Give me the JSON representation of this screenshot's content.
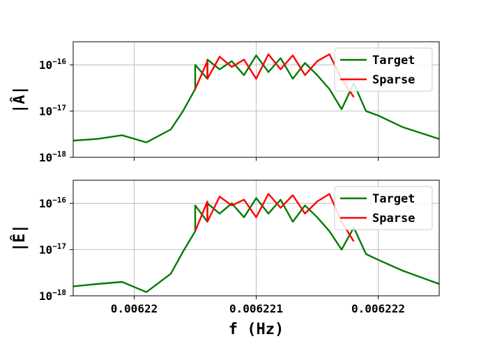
{
  "chart_data": [
    {
      "type": "line",
      "ylabel": "|Â|",
      "yscale": "log",
      "ylim_exponent": [
        -18,
        -15.5
      ],
      "ytick_exponents": [
        -16,
        -17,
        -18
      ],
      "ytick_base": "10",
      "xlim": [
        0.0062195,
        0.0062225
      ],
      "xticks": [
        0.00622,
        0.006221,
        0.006222
      ],
      "xtick_labels": [
        "",
        "",
        ""
      ],
      "grid": true,
      "legend": "top-right",
      "series": [
        {
          "name": "Target",
          "color": "#007a00",
          "x": [
            0.0062195,
            0.0062197,
            0.0062199,
            0.0062201,
            0.0062203,
            0.0062204,
            0.0062205,
            0.0062205,
            0.0062206,
            0.0062206,
            0.0062207,
            0.0062208,
            0.0062209,
            0.006221,
            0.0062211,
            0.0062212,
            0.0062213,
            0.0062214,
            0.0062215,
            0.0062216,
            0.0062217,
            0.0062218,
            0.0062219,
            0.006222,
            0.0062222,
            0.0062225
          ],
          "y": [
            2.3e-18,
            2.5e-18,
            3e-18,
            2.1e-18,
            4e-18,
            1e-17,
            3e-17,
            1e-16,
            5e-17,
            1.3e-16,
            8e-17,
            1.2e-16,
            6e-17,
            1.6e-16,
            7e-17,
            1.4e-16,
            5e-17,
            1.1e-16,
            6e-17,
            3e-17,
            1.1e-17,
            4e-17,
            1e-17,
            8e-18,
            4.5e-18,
            2.5e-18
          ]
        },
        {
          "name": "Sparse",
          "color": "#ff0000",
          "x": [
            0.0062205,
            0.0062206,
            0.0062206,
            0.0062207,
            0.0062208,
            0.0062209,
            0.006221,
            0.0062211,
            0.0062212,
            0.0062213,
            0.0062214,
            0.0062215,
            0.0062216,
            0.0062217,
            0.0062218
          ],
          "y": [
            3e-17,
            1.2e-16,
            5e-17,
            1.5e-16,
            9e-17,
            1.3e-16,
            5e-17,
            1.7e-16,
            8e-17,
            1.6e-16,
            6e-17,
            1.2e-16,
            1.7e-16,
            5e-17,
            2e-17
          ]
        }
      ]
    },
    {
      "type": "line",
      "ylabel": "|Ê|",
      "xlabel": "f (Hz)",
      "yscale": "log",
      "ylim_exponent": [
        -18,
        -15.5
      ],
      "ytick_exponents": [
        -16,
        -17,
        -18
      ],
      "ytick_base": "10",
      "xlim": [
        0.0062195,
        0.0062225
      ],
      "xticks": [
        0.00622,
        0.006221,
        0.006222
      ],
      "xtick_labels": [
        "0.00622",
        "0.006221",
        "0.006222"
      ],
      "grid": true,
      "legend": "top-right",
      "series": [
        {
          "name": "Target",
          "color": "#007a00",
          "x": [
            0.0062195,
            0.0062197,
            0.0062199,
            0.0062201,
            0.0062203,
            0.0062204,
            0.0062205,
            0.0062205,
            0.0062206,
            0.0062206,
            0.0062207,
            0.0062208,
            0.0062209,
            0.006221,
            0.0062211,
            0.0062212,
            0.0062213,
            0.0062214,
            0.0062215,
            0.0062216,
            0.0062217,
            0.0062218,
            0.0062219,
            0.006222,
            0.0062222,
            0.0062225
          ],
          "y": [
            1.6e-18,
            1.8e-18,
            2e-18,
            1.2e-18,
            3e-18,
            9e-18,
            2.5e-17,
            9e-17,
            4e-17,
            1e-16,
            6e-17,
            1e-16,
            5e-17,
            1.3e-16,
            6e-17,
            1.2e-16,
            4e-17,
            9e-17,
            5e-17,
            2.5e-17,
            1e-17,
            3e-17,
            8e-18,
            6e-18,
            3.5e-18,
            1.8e-18
          ]
        },
        {
          "name": "Sparse",
          "color": "#ff0000",
          "x": [
            0.0062205,
            0.0062206,
            0.0062206,
            0.0062207,
            0.0062208,
            0.0062209,
            0.006221,
            0.0062211,
            0.0062212,
            0.0062213,
            0.0062214,
            0.0062215,
            0.0062216,
            0.0062217,
            0.0062218
          ],
          "y": [
            2.5e-17,
            1.1e-16,
            4e-17,
            1.4e-16,
            9e-17,
            1.2e-16,
            5e-17,
            1.6e-16,
            8e-17,
            1.5e-16,
            6e-17,
            1.1e-16,
            1.6e-16,
            4e-17,
            1.5e-17
          ]
        }
      ]
    }
  ]
}
